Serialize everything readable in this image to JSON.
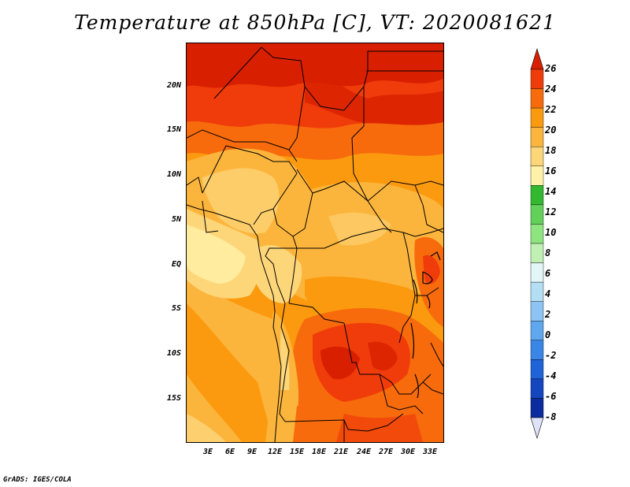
{
  "title": "Temperature at 850hPa [C], VT: 2020081621",
  "credit": "GrADS: IGES/COLA",
  "map": {
    "lat_ticks": [
      "20N",
      "15N",
      "10N",
      "5N",
      "EQ",
      "5S",
      "10S",
      "15S"
    ],
    "lon_ticks": [
      "3E",
      "6E",
      "9E",
      "12E",
      "15E",
      "18E",
      "21E",
      "24E",
      "27E",
      "30E",
      "33E"
    ]
  },
  "colorbar": {
    "levels": [
      "26",
      "24",
      "22",
      "20",
      "18",
      "16",
      "14",
      "12",
      "10",
      "8",
      "6",
      "4",
      "2",
      "0",
      "-2",
      "-4",
      "-6",
      "-8"
    ],
    "colors_top_to_bottom": [
      "#d81f00",
      "#f03c0a",
      "#f76b0c",
      "#fb9a0f",
      "#fcb53c",
      "#fdd67a",
      "#fff1a8",
      "#33b82f",
      "#62d15a",
      "#8ee57f",
      "#c0f0b4",
      "#e3f6f7",
      "#b4def4",
      "#8ec4f3",
      "#5fa7ee",
      "#3a86e6",
      "#1e64d8",
      "#1446c0",
      "#0b2c9e",
      "#081a6e"
    ],
    "upper_arrow_color": "#d81f00",
    "lower_arrow_color": "#dfe3f7"
  }
}
